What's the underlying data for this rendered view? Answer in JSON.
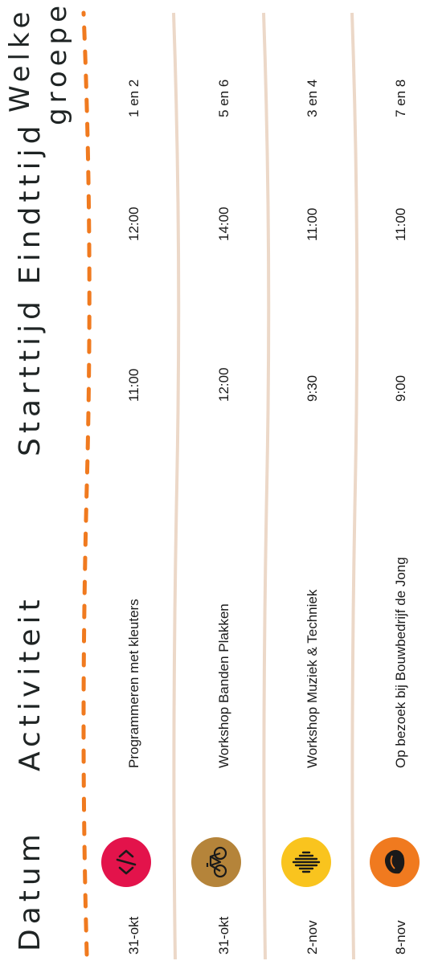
{
  "headers": {
    "datum": "Datum",
    "activiteit": "Activiteit",
    "starttijd": "Starttijd",
    "eindtijd": "Eindttijd",
    "groepen_line1": "Welke",
    "groepen_line2": "groepen"
  },
  "rows": [
    {
      "datum": "31-okt",
      "activiteit": "Programmeren met kleuters",
      "start": "11:00",
      "eind": "12:00",
      "groepen": "1 en 2",
      "icon": "code-icon",
      "icon_color": "#e3134b"
    },
    {
      "datum": "31-okt",
      "activiteit": "Workshop Banden Plakken",
      "start": "12:00",
      "eind": "14:00",
      "groepen": "5 en 6",
      "icon": "bicycle-icon",
      "icon_color": "#b5843a"
    },
    {
      "datum": "2-nov",
      "activiteit": "Workshop Muziek & Techniek",
      "start": "9:30",
      "eind": "11:00",
      "groepen": "3 en 4",
      "icon": "soundwave-icon",
      "icon_color": "#f9c41e"
    },
    {
      "datum": "8-nov",
      "activiteit": "Op bezoek bij Bouwbedrijf de Jong",
      "start": "9:00",
      "eind": "11:00",
      "groepen": "7 en 8",
      "icon": "stone-icon",
      "icon_color": "#f07a1f"
    }
  ],
  "colors": {
    "dash": "#f07a1f",
    "divider": "#ecd8c8",
    "text": "#1a1a1a"
  }
}
